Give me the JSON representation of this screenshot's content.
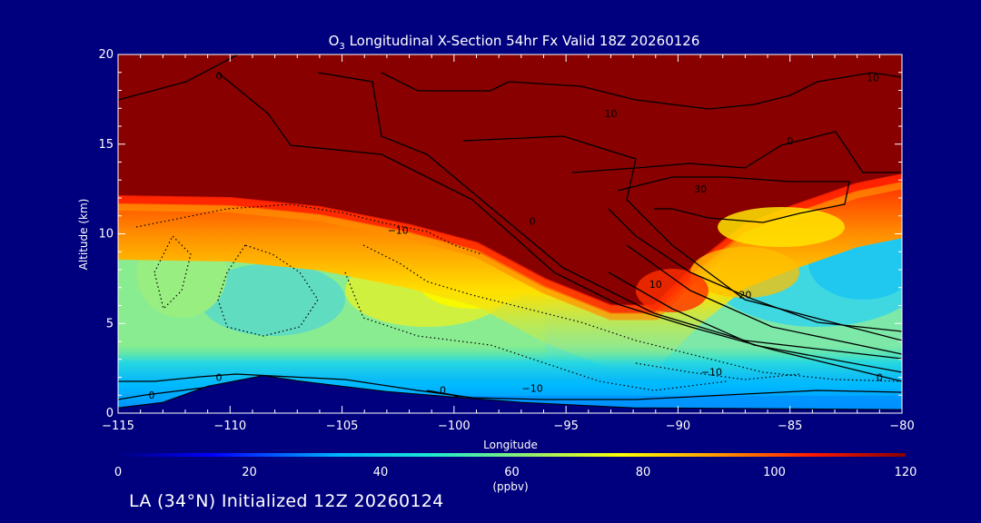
{
  "chart_data": {
    "type": "heatmap",
    "title": "O3 Longitudinal X-Section 54hr  Fx Valid 18Z 20260126",
    "title_main": "O",
    "title_sub": "3",
    "title_rest": " Longitudinal X-Section 54hr  Fx Valid 18Z 20260126",
    "xlabel": "Longitude",
    "ylabel": "Altitude (km)",
    "xlim": [
      -115,
      -80
    ],
    "ylim": [
      0,
      20
    ],
    "x_ticks": [
      "−115",
      "−110",
      "−105",
      "−100",
      "−95",
      "−90",
      "−85",
      "−80"
    ],
    "x_tick_values": [
      -115,
      -110,
      -105,
      -100,
      -95,
      -90,
      -85,
      -80
    ],
    "y_ticks": [
      "0",
      "5",
      "10",
      "15",
      "20"
    ],
    "y_tick_values": [
      0,
      5,
      10,
      15,
      20
    ],
    "colorbar": {
      "range": [
        0,
        120
      ],
      "tick_values": [
        0,
        20,
        40,
        60,
        80,
        100,
        120
      ],
      "tick_labels": [
        "0",
        "20",
        "40",
        "60",
        "80",
        "100",
        "120"
      ],
      "unit": "(ppbv)"
    },
    "tropopause_km": [
      [
        -115,
        12.1
      ],
      [
        -110,
        12.0
      ],
      [
        -106,
        11.5
      ],
      [
        -102,
        10.5
      ],
      [
        -99,
        9.5
      ],
      [
        -96,
        7.5
      ],
      [
        -93,
        6.0
      ],
      [
        -91,
        6.0
      ],
      [
        -89,
        8.5
      ],
      [
        -87,
        10.5
      ],
      [
        -85,
        11.5
      ],
      [
        -82,
        12.8
      ],
      [
        -80,
        13.3
      ]
    ],
    "terrain_km": [
      [
        -115,
        0.3
      ],
      [
        -113,
        0.6
      ],
      [
        -111,
        1.5
      ],
      [
        -108.5,
        2.1
      ],
      [
        -107,
        1.8
      ],
      [
        -105,
        1.5
      ],
      [
        -103,
        1.2
      ],
      [
        -100,
        0.9
      ],
      [
        -97,
        0.6
      ],
      [
        -92,
        0.3
      ],
      [
        -80,
        0.2
      ]
    ],
    "contour_labels": [
      {
        "text": "0",
        "x": -110.5,
        "y": 18.6
      },
      {
        "text": "10",
        "x": -93,
        "y": 16.5
      },
      {
        "text": "10",
        "x": -81.3,
        "y": 18.5
      },
      {
        "text": "0",
        "x": -85,
        "y": 15.0
      },
      {
        "text": "30",
        "x": -89,
        "y": 12.3
      },
      {
        "text": "0",
        "x": -96.5,
        "y": 10.5
      },
      {
        "text": "−10",
        "x": -102.5,
        "y": 10.0
      },
      {
        "text": "10",
        "x": -91,
        "y": 7.0
      },
      {
        "text": "20",
        "x": -87,
        "y": 6.4
      },
      {
        "text": "−10",
        "x": -88.5,
        "y": 2.1
      },
      {
        "text": "−10",
        "x": -96.5,
        "y": 1.2
      },
      {
        "text": "0",
        "x": -81,
        "y": 1.8
      },
      {
        "text": "0",
        "x": -110.5,
        "y": 1.8
      },
      {
        "text": "0",
        "x": -113.5,
        "y": 0.8
      },
      {
        "text": "0",
        "x": -100.5,
        "y": 1.1
      }
    ]
  },
  "footer": {
    "label": "LA (34°N) Initialized 12Z 20260124"
  }
}
